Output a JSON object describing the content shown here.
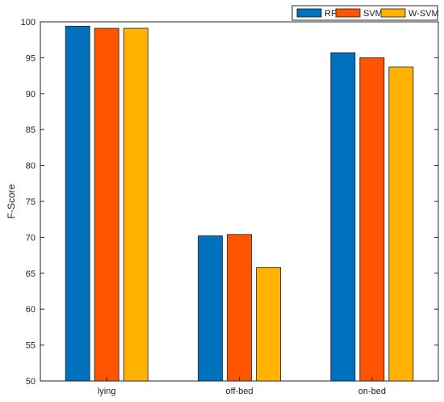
{
  "chart_data": {
    "type": "bar",
    "title": "",
    "xlabel": "",
    "ylabel": "F-Score",
    "categories": [
      "lying",
      "off-bed",
      "on-bed"
    ],
    "series": [
      {
        "name": "RF",
        "color": "#0072BD",
        "values": [
          99.4,
          70.2,
          95.7
        ]
      },
      {
        "name": "SVM",
        "color": "#FF5500",
        "values": [
          99.1,
          70.4,
          95.0
        ]
      },
      {
        "name": "W-SVM",
        "color": "#FFB300",
        "values": [
          99.1,
          65.8,
          93.7
        ]
      }
    ],
    "ylim": [
      50,
      100
    ],
    "yticks": [
      50,
      55,
      60,
      65,
      70,
      75,
      80,
      85,
      90,
      95,
      100
    ],
    "grid": false,
    "legend_position": "top-right",
    "legend_orientation": "horizontal"
  }
}
